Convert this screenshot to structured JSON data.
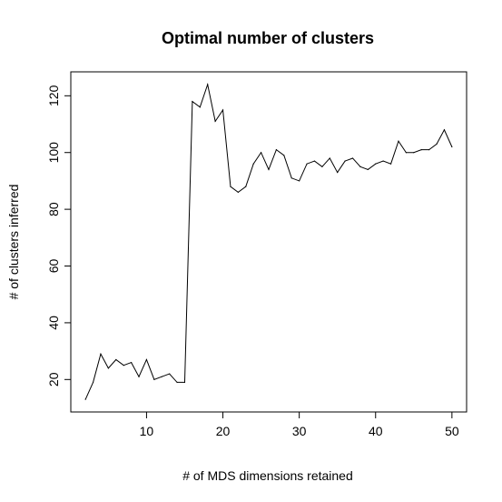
{
  "chart_data": {
    "type": "line",
    "title": "Optimal number of clusters",
    "xlabel": "# of MDS dimensions retained",
    "ylabel": "# of clusters inferred",
    "xlim": [
      0.08,
      51.92
    ],
    "ylim": [
      8.56,
      128.44
    ],
    "x_ticks": [
      10,
      20,
      30,
      40,
      50
    ],
    "y_ticks": [
      20,
      40,
      60,
      80,
      100,
      120
    ],
    "grid": false,
    "series": [
      {
        "x": [
          2,
          3,
          4,
          5,
          6,
          7,
          8,
          9,
          10,
          11,
          12,
          13,
          14,
          15,
          16,
          17,
          18,
          19,
          20,
          21,
          22,
          23,
          24,
          25,
          26,
          27,
          28,
          29,
          30,
          31,
          32,
          33,
          34,
          35,
          36,
          37,
          38,
          39,
          40,
          41,
          42,
          43,
          44,
          45,
          46,
          47,
          48,
          49,
          50
        ],
        "values": [
          13,
          19,
          29,
          24,
          27,
          25,
          26,
          21,
          27,
          20,
          21,
          22,
          19,
          19,
          118,
          116,
          124,
          111,
          115,
          88,
          86,
          88,
          96,
          100,
          94,
          101,
          99,
          91,
          90,
          96,
          97,
          95,
          98,
          93,
          97,
          98,
          95,
          94,
          96,
          97,
          96,
          104,
          100,
          100,
          101,
          101,
          103,
          108,
          102
        ],
        "color": "#000000"
      }
    ]
  }
}
